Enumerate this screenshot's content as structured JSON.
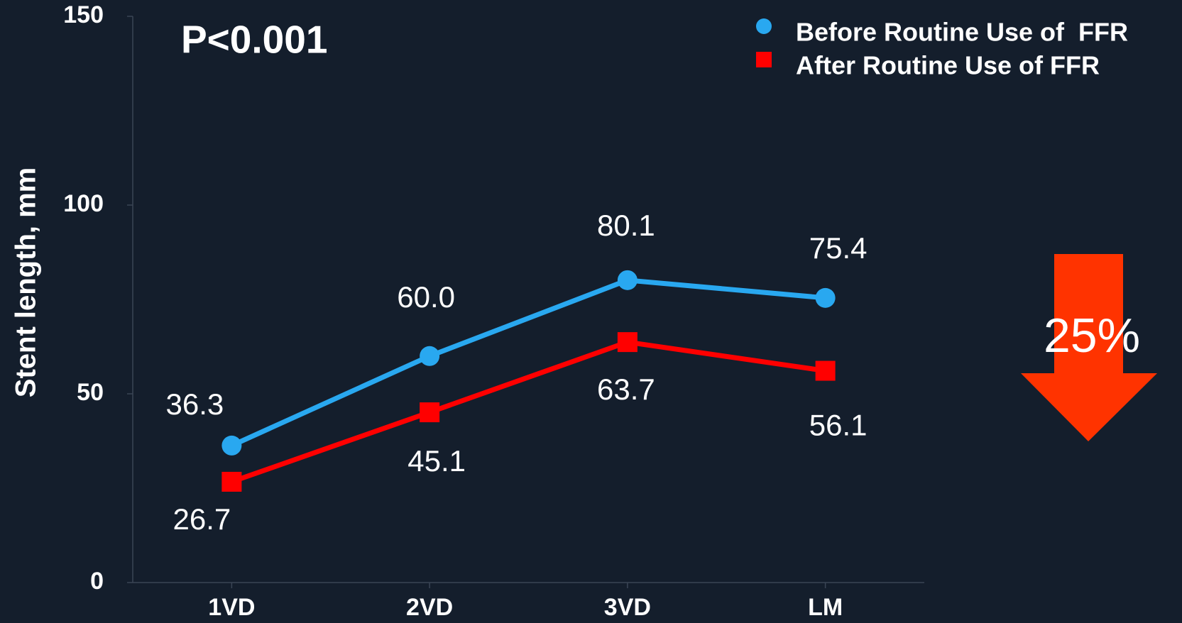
{
  "chart_data": {
    "type": "line",
    "y_label": "Stent length, mm",
    "annotations": [
      "P<0.001",
      "25%"
    ],
    "categories": [
      "1VD",
      "2VD",
      "3VD",
      "LM"
    ],
    "series": [
      {
        "name": "Before Routine Use of  FFR",
        "color": "#29a8f0",
        "marker": "circle",
        "values": [
          36.3,
          60.0,
          80.1,
          75.4
        ],
        "value_labels": [
          "36.3",
          "60.0",
          "80.1",
          "75.4"
        ]
      },
      {
        "name": "After Routine Use of FFR",
        "color": "#ff0000",
        "marker": "square",
        "values": [
          26.7,
          45.1,
          63.7,
          56.1
        ],
        "value_labels": [
          "26.7",
          "45.1",
          "63.7",
          "56.1"
        ]
      }
    ],
    "ylim": [
      0,
      150
    ],
    "yticks": [
      0,
      50,
      100,
      150
    ]
  }
}
